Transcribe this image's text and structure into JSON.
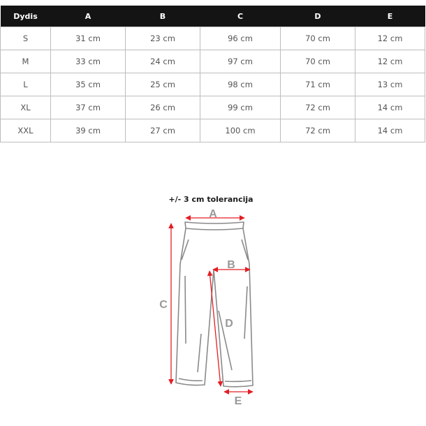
{
  "table": {
    "headers": [
      "Dydis",
      "A",
      "B",
      "C",
      "D",
      "E"
    ],
    "rows": [
      [
        "S",
        "31 cm",
        "23 cm",
        "96 cm",
        "70 cm",
        "12 cm"
      ],
      [
        "M",
        "33 cm",
        "24 cm",
        "97 cm",
        "70 cm",
        "12 cm"
      ],
      [
        "L",
        "35 cm",
        "25 cm",
        "98 cm",
        "71 cm",
        "13 cm"
      ],
      [
        "XL",
        "37 cm",
        "26 cm",
        "99 cm",
        "72 cm",
        "14 cm"
      ],
      [
        "XXL",
        "39 cm",
        "27 cm",
        "100 cm",
        "72 cm",
        "14 cm"
      ]
    ]
  },
  "diagram": {
    "tolerance": "+/- 3 cm tolerancija",
    "labels": {
      "a": "A",
      "b": "B",
      "c": "C",
      "d": "D",
      "e": "E"
    },
    "arrow_color": "#e31e24",
    "outline_color": "#8a8a8a"
  }
}
